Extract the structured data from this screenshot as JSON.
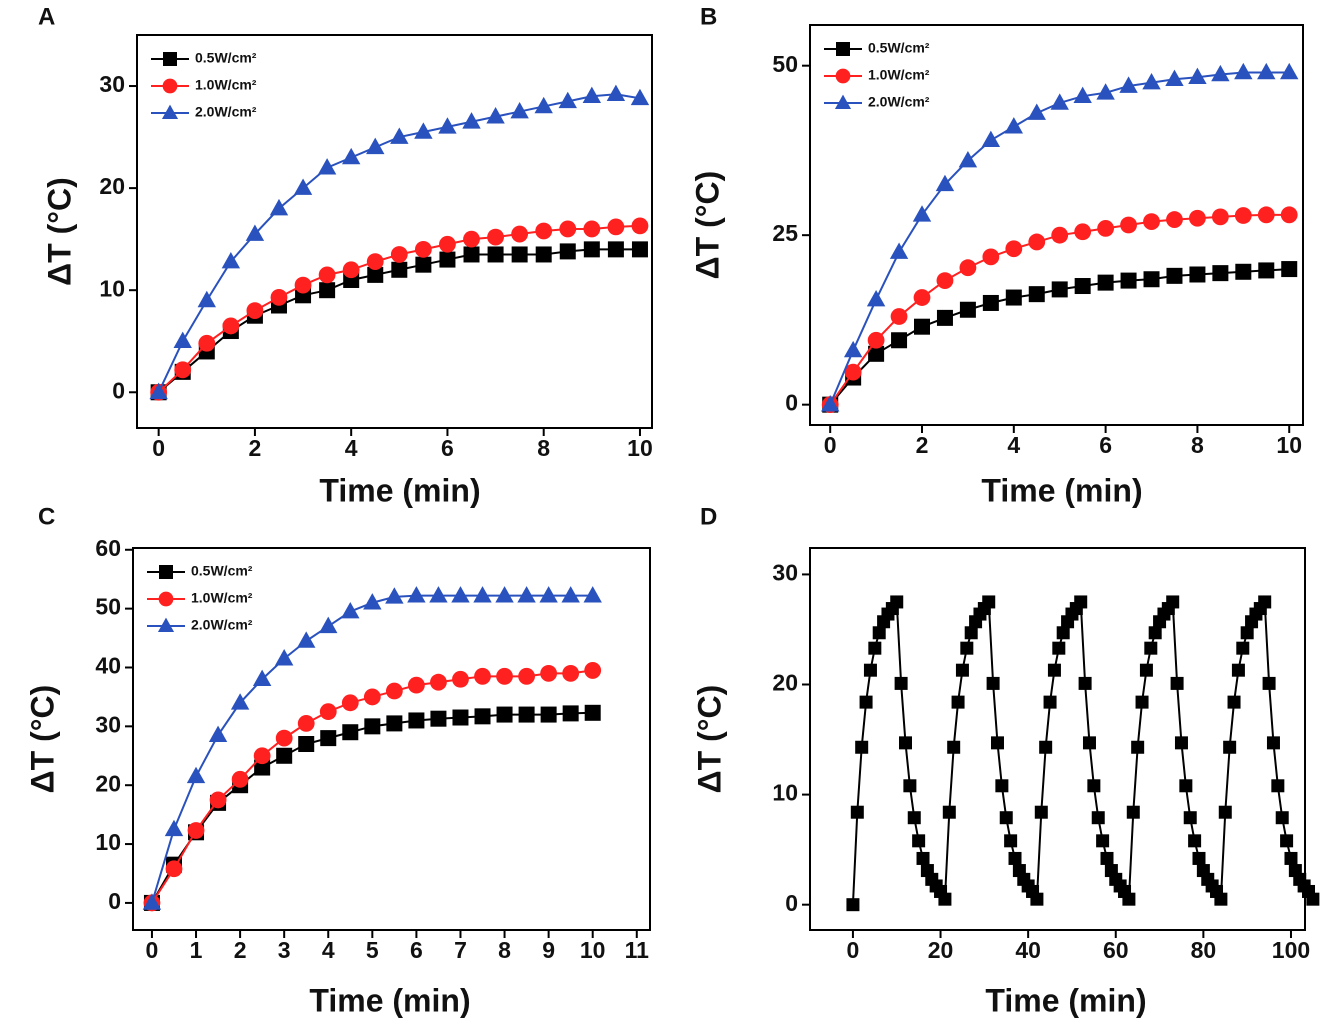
{
  "chart_data": [
    {
      "type": "line",
      "panel": "A",
      "xlabel": "Time (min)",
      "ylabel": "ΔT (°C)",
      "legend": "upper left",
      "x": [
        0,
        0.5,
        1,
        1.5,
        2,
        2.5,
        3,
        3.5,
        4,
        4.5,
        5,
        5.5,
        6,
        6.5,
        7,
        7.5,
        8,
        8.5,
        9,
        9.5,
        10
      ],
      "xlim": [
        -0.45,
        10.25
      ],
      "ylim": [
        -3.5,
        35
      ],
      "xticks": [
        0,
        2,
        4,
        6,
        8,
        10
      ],
      "yticks": [
        0,
        10,
        20,
        30
      ],
      "series": [
        {
          "name": "0.5W/cm²",
          "color": "#000000",
          "marker": "square",
          "values": [
            0,
            2,
            4,
            6,
            7.5,
            8.5,
            9.5,
            10,
            11,
            11.5,
            12,
            12.5,
            13,
            13.5,
            13.5,
            13.5,
            13.5,
            13.8,
            14,
            14,
            14
          ]
        },
        {
          "name": "1.0W/cm²",
          "color": "#ff2020",
          "marker": "circle",
          "values": [
            0,
            2.2,
            4.8,
            6.5,
            8,
            9.3,
            10.5,
            11.5,
            12,
            12.8,
            13.5,
            14,
            14.5,
            15,
            15.2,
            15.5,
            15.8,
            16,
            16,
            16.2,
            16.3
          ]
        },
        {
          "name": "2.0W/cm²",
          "color": "#2a52be",
          "marker": "triangle",
          "values": [
            0,
            5,
            9,
            12.8,
            15.5,
            18,
            20,
            22,
            23,
            24,
            25,
            25.5,
            26,
            26.5,
            27,
            27.5,
            28,
            28.5,
            29,
            29.2,
            28.8
          ]
        }
      ]
    },
    {
      "type": "line",
      "panel": "B",
      "xlabel": "Time (min)",
      "ylabel": "ΔT (°C)",
      "legend": "upper left",
      "x": [
        0,
        0.5,
        1,
        1.5,
        2,
        2.5,
        3,
        3.5,
        4,
        4.5,
        5,
        5.5,
        6,
        6.5,
        7,
        7.5,
        8,
        8.5,
        9,
        9.5,
        10
      ],
      "xlim": [
        -0.44,
        10.3
      ],
      "ylim": [
        -3,
        56
      ],
      "xticks": [
        0,
        2,
        4,
        6,
        8,
        10
      ],
      "yticks": [
        0,
        25,
        50
      ],
      "series": [
        {
          "name": "0.5W/cm²",
          "color": "#000000",
          "marker": "square",
          "values": [
            0,
            4,
            7.5,
            9.5,
            11.5,
            12.8,
            14,
            15,
            15.8,
            16.3,
            17,
            17.5,
            18,
            18.3,
            18.5,
            19,
            19.2,
            19.4,
            19.6,
            19.8,
            20
          ]
        },
        {
          "name": "1.0W/cm²",
          "color": "#ff2020",
          "marker": "circle",
          "values": [
            0,
            4.8,
            9.5,
            13,
            15.8,
            18.3,
            20.2,
            21.8,
            23,
            24,
            25,
            25.5,
            26,
            26.5,
            27,
            27.3,
            27.5,
            27.7,
            27.9,
            28,
            28
          ]
        },
        {
          "name": "2.0W/cm²",
          "color": "#2a52be",
          "marker": "triangle",
          "values": [
            0,
            8,
            15.5,
            22.5,
            28,
            32.5,
            36,
            39,
            41,
            43,
            44.5,
            45.5,
            46,
            47,
            47.5,
            48,
            48.3,
            48.7,
            49,
            49,
            49
          ]
        }
      ]
    },
    {
      "type": "line",
      "panel": "C",
      "xlabel": "Time (min)",
      "ylabel": "ΔT (°C)",
      "legend": "upper left",
      "x": [
        0,
        0.5,
        1,
        1.5,
        2,
        2.5,
        3,
        3.5,
        4,
        4.5,
        5,
        5.5,
        6,
        6.5,
        7,
        7.5,
        8,
        8.5,
        9,
        9.5,
        10
      ],
      "xlim": [
        -0.43,
        11.3
      ],
      "ylim": [
        -4.6,
        60.3
      ],
      "xticks": [
        0,
        1,
        2,
        3,
        4,
        5,
        6,
        7,
        8,
        9,
        10,
        11
      ],
      "yticks": [
        0,
        10,
        20,
        30,
        40,
        50,
        60
      ],
      "series": [
        {
          "name": "0.5W/cm²",
          "color": "#000000",
          "marker": "square",
          "values": [
            0,
            6.5,
            12,
            17,
            20,
            23,
            25,
            27,
            28,
            29,
            30,
            30.5,
            31,
            31.3,
            31.5,
            31.7,
            32,
            32,
            32,
            32.2,
            32.3
          ]
        },
        {
          "name": "1.0W/cm²",
          "color": "#ff2020",
          "marker": "circle",
          "values": [
            0,
            5.8,
            12.3,
            17.5,
            21,
            25,
            28,
            30.5,
            32.5,
            34,
            35,
            36,
            37,
            37.5,
            38,
            38.5,
            38.5,
            38.5,
            39,
            39,
            39.5
          ]
        },
        {
          "name": "2.0W/cm²",
          "color": "#2a52be",
          "marker": "triangle",
          "values": [
            0,
            12.5,
            21.5,
            28.5,
            34,
            38,
            41.5,
            44.5,
            47,
            49.5,
            51,
            52,
            52.2,
            52.2,
            52.2,
            52.2,
            52.2,
            52.2,
            52.2,
            52.2,
            52.2
          ]
        }
      ]
    },
    {
      "type": "line",
      "panel": "D",
      "xlabel": "Time (min)",
      "ylabel": "ΔT (°C)",
      "x": [
        0,
        1,
        2,
        3,
        4,
        5,
        6,
        7,
        8,
        9,
        10,
        11,
        12,
        13,
        14,
        15,
        16,
        17,
        18,
        19,
        20,
        21,
        22,
        23,
        24,
        25,
        26,
        27,
        28,
        29,
        30,
        31,
        32,
        33,
        34,
        35,
        36,
        37,
        38,
        39,
        40,
        41,
        42,
        43,
        44,
        45,
        46,
        47,
        48,
        49,
        50,
        51,
        52,
        53,
        54,
        55,
        56,
        57,
        58,
        59,
        60,
        61,
        62,
        63,
        64,
        65,
        66,
        67,
        68,
        69,
        70,
        71,
        72,
        73,
        74,
        75,
        76,
        77,
        78,
        79,
        80,
        81,
        82,
        83,
        84,
        85,
        86,
        87,
        88,
        89,
        90,
        91,
        92,
        93,
        94,
        95,
        96,
        97,
        98,
        99,
        100,
        101,
        102,
        103,
        104,
        105
      ],
      "xlim": [
        -9.8,
        103.2
      ],
      "ylim": [
        -2.3,
        32.4
      ],
      "xticks": [
        0,
        20,
        40,
        60,
        80,
        100
      ],
      "yticks": [
        0,
        10,
        20,
        30
      ],
      "series": [
        {
          "color": "#000000",
          "marker": "square",
          "values": [
            0,
            8.4,
            14.3,
            18.4,
            21.3,
            23.3,
            24.7,
            25.7,
            26.4,
            26.9,
            27.5,
            20.1,
            14.7,
            10.8,
            7.9,
            5.8,
            4.2,
            3.1,
            2.3,
            1.7,
            1.2,
            0.5,
            8.4,
            14.3,
            18.4,
            21.3,
            23.3,
            24.7,
            25.7,
            26.4,
            26.9,
            27.5,
            20.1,
            14.7,
            10.8,
            7.9,
            5.8,
            4.2,
            3.1,
            2.3,
            1.7,
            1.2,
            0.5,
            8.4,
            14.3,
            18.4,
            21.3,
            23.3,
            24.7,
            25.7,
            26.4,
            26.9,
            27.5,
            20.1,
            14.7,
            10.8,
            7.9,
            5.8,
            4.2,
            3.1,
            2.3,
            1.7,
            1.2,
            0.5,
            8.4,
            14.3,
            18.4,
            21.3,
            23.3,
            24.7,
            25.7,
            26.4,
            26.9,
            27.5,
            20.1,
            14.7,
            10.8,
            7.9,
            5.8,
            4.2,
            3.1,
            2.3,
            1.7,
            1.2,
            0.5,
            8.4,
            14.3,
            18.4,
            21.3,
            23.3,
            24.7,
            25.7,
            26.4,
            26.9,
            27.5,
            20.1,
            14.7,
            10.8,
            7.9,
            5.8,
            4.2,
            3.1,
            2.3,
            1.7,
            1.2,
            0.5
          ]
        }
      ]
    }
  ]
}
